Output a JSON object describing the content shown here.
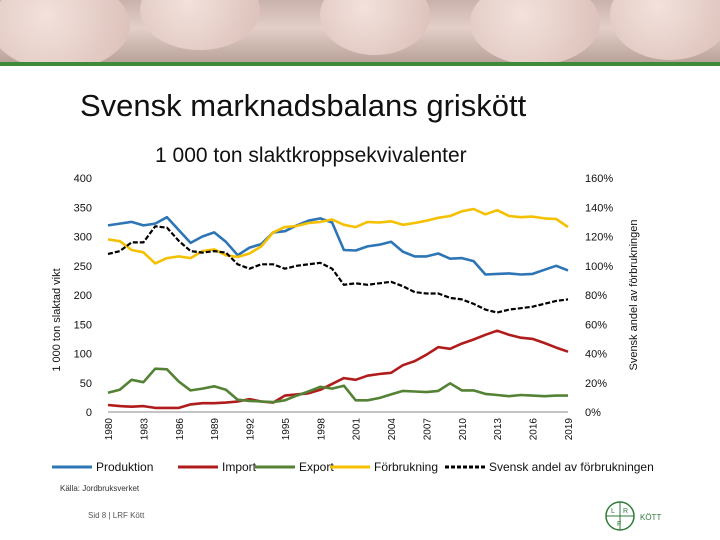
{
  "header": {
    "title": "Svensk marknadsbalans griskött",
    "subtitle": "1 000 ton slaktkroppsekvivalenter"
  },
  "chart_data": {
    "type": "line",
    "title": "Svensk marknadsbalans griskött",
    "subtitle": "1 000 ton slaktkroppsekvivalenter",
    "ylabel": "1 000 ton slaktad vikt",
    "y2label": "Svensk andel av förbrukningen",
    "ylim": [
      0,
      400
    ],
    "y2lim": [
      0,
      1.6
    ],
    "yticks": [
      "0",
      "50",
      "100",
      "150",
      "200",
      "250",
      "300",
      "350",
      "400"
    ],
    "y2ticks": [
      "0%",
      "20%",
      "40%",
      "60%",
      "80%",
      "100%",
      "120%",
      "140%",
      "160%"
    ],
    "xticks": [
      "1980",
      "1983",
      "1986",
      "1989",
      "1992",
      "1995",
      "1998",
      "2001",
      "2004",
      "2007",
      "2010",
      "2013",
      "2016",
      "2019"
    ],
    "x": [
      1980,
      1981,
      1982,
      1983,
      1984,
      1985,
      1986,
      1987,
      1988,
      1989,
      1990,
      1991,
      1992,
      1993,
      1994,
      1995,
      1996,
      1997,
      1998,
      1999,
      2000,
      2001,
      2002,
      2003,
      2004,
      2005,
      2006,
      2007,
      2008,
      2009,
      2010,
      2011,
      2012,
      2013,
      2014,
      2015,
      2016,
      2017,
      2018,
      2019
    ],
    "legend_position": "bottom",
    "grid": false,
    "series": [
      {
        "name": "Produktion",
        "axis": "left",
        "color": "#2e75b6",
        "values": [
          319,
          322,
          325,
          319,
          322,
          333,
          311,
          289,
          300,
          307,
          291,
          268,
          281,
          287,
          307,
          309,
          319,
          327,
          331,
          324,
          277,
          276,
          283,
          286,
          291,
          274,
          266,
          266,
          271,
          262,
          263,
          258,
          235,
          236,
          237,
          235,
          236,
          243,
          250,
          242
        ]
      },
      {
        "name": "Import",
        "axis": "left",
        "color": "#b01c1c",
        "values": [
          12,
          10,
          9,
          10,
          7,
          7,
          7,
          13,
          15,
          15,
          16,
          18,
          22,
          18,
          16,
          28,
          30,
          32,
          38,
          48,
          58,
          55,
          62,
          65,
          67,
          80,
          87,
          98,
          111,
          108,
          117,
          124,
          132,
          139,
          132,
          127,
          125,
          118,
          110,
          103
        ]
      },
      {
        "name": "Export",
        "axis": "left",
        "color": "#548235",
        "values": [
          33,
          38,
          55,
          51,
          74,
          73,
          52,
          37,
          40,
          44,
          38,
          21,
          19,
          18,
          17,
          20,
          28,
          35,
          43,
          40,
          45,
          20,
          20,
          24,
          30,
          36,
          35,
          34,
          36,
          49,
          37,
          37,
          31,
          29,
          27,
          29,
          28,
          27,
          28,
          28
        ]
      },
      {
        "name": "Förbrukning",
        "axis": "left",
        "color": "#f5c000",
        "values": [
          295,
          292,
          277,
          273,
          254,
          263,
          266,
          263,
          275,
          278,
          268,
          265,
          271,
          283,
          307,
          316,
          318,
          323,
          325,
          329,
          320,
          316,
          325,
          324,
          326,
          320,
          323,
          327,
          332,
          335,
          343,
          347,
          338,
          345,
          335,
          333,
          334,
          331,
          330,
          316
        ]
      },
      {
        "name": "Svensk andel av förbrukningen",
        "axis": "right",
        "color": "#000000",
        "dashed": true,
        "values": [
          1.08,
          1.1,
          1.16,
          1.16,
          1.27,
          1.26,
          1.17,
          1.1,
          1.09,
          1.1,
          1.09,
          1.01,
          0.98,
          1.01,
          1.01,
          0.98,
          1.0,
          1.01,
          1.02,
          0.98,
          0.87,
          0.88,
          0.87,
          0.88,
          0.89,
          0.86,
          0.82,
          0.81,
          0.81,
          0.78,
          0.77,
          0.74,
          0.7,
          0.68,
          0.7,
          0.71,
          0.72,
          0.74,
          0.76,
          0.77
        ]
      }
    ]
  },
  "source": "Källa: Jordbruksverket",
  "footer": "Sid 8 | LRF Kött",
  "logo": {
    "text": "KÖTT",
    "letters": [
      "L",
      "R",
      "F"
    ],
    "color": "#2f7a3a"
  }
}
